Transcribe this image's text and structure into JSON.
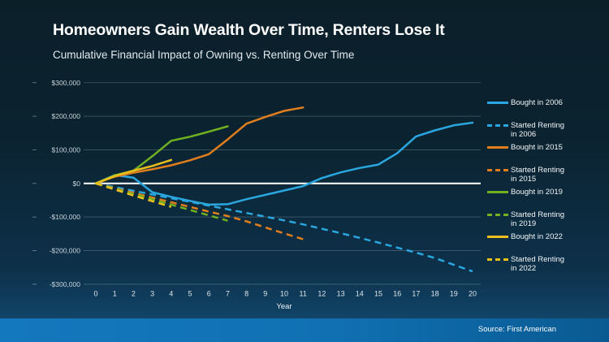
{
  "header": {
    "title": "Homeowners Gain Wealth Over Time, Renters Lose It",
    "subtitle": "Cumulative Financial Impact of Owning vs. Renting Over Time"
  },
  "footer": {
    "source": "Source: First American"
  },
  "colors": {
    "cyan": "#2aa7df",
    "orange": "#e07e1e",
    "green": "#71b121",
    "yellow": "#eac11c",
    "grid": "#ffffff",
    "zero_line": "#ffffff",
    "tick_label": "#c8d3da",
    "x_label": "#dce5ea",
    "ribbon_left": "#1478be",
    "ribbon_right": "#0a5a92",
    "background_top": "#0b1f29",
    "background_bottom": "#135078"
  },
  "chart_data": {
    "type": "line",
    "title": "Homeowners Gain Wealth Over Time, Renters Lose It",
    "subtitle": "Cumulative Financial Impact of Owning vs. Renting Over Time",
    "xlabel": "Year",
    "ylabel": "",
    "xlim": [
      0,
      20
    ],
    "ylim": [
      -300000,
      300000
    ],
    "grid": true,
    "legend_position": "right",
    "x_ticks": [
      0,
      1,
      2,
      3,
      4,
      5,
      6,
      7,
      8,
      9,
      10,
      11,
      12,
      13,
      14,
      15,
      16,
      17,
      18,
      19,
      20
    ],
    "y_ticks": [
      {
        "value": 300000,
        "label": "$300,000"
      },
      {
        "value": 200000,
        "label": "$200,000"
      },
      {
        "value": 100000,
        "label": "$100,000"
      },
      {
        "value": 0,
        "label": "$0"
      },
      {
        "value": -100000,
        "label": "-$100,000"
      },
      {
        "value": -200000,
        "label": "-$200,000"
      },
      {
        "value": -300000,
        "label": "-$300,000"
      }
    ],
    "series": [
      {
        "name": "Bought in 2006",
        "color_key": "cyan",
        "dash": false,
        "values": [
          0,
          25000,
          17000,
          -26000,
          -40000,
          -52000,
          -63000,
          -62000,
          -47000,
          -34000,
          -21000,
          -8000,
          16000,
          33000,
          46000,
          56000,
          90000,
          140000,
          158000,
          173000,
          181000
        ]
      },
      {
        "name": "Started Renting in 2006",
        "color_key": "cyan",
        "dash": true,
        "values": [
          0,
          -11000,
          -22000,
          -33000,
          -44000,
          -55000,
          -66000,
          -77000,
          -88000,
          -99000,
          -110000,
          -122000,
          -135000,
          -148000,
          -162000,
          -176000,
          -191000,
          -206000,
          -222000,
          -242000,
          -262000
        ]
      },
      {
        "name": "Bought in 2015",
        "color_key": "orange",
        "dash": false,
        "values": [
          0,
          20000,
          32000,
          42000,
          54000,
          69000,
          87000,
          131000,
          178000,
          198000,
          216000,
          226000
        ]
      },
      {
        "name": "Started Renting in 2015",
        "color_key": "orange",
        "dash": true,
        "values": [
          0,
          -14000,
          -28000,
          -42000,
          -56000,
          -70000,
          -84000,
          -97000,
          -113000,
          -131000,
          -149000,
          -166000
        ]
      },
      {
        "name": "Bought in 2019",
        "color_key": "green",
        "dash": false,
        "values": [
          0,
          24000,
          38000,
          81000,
          127000,
          139000,
          154000,
          170000
        ]
      },
      {
        "name": "Started Renting in 2019",
        "color_key": "green",
        "dash": true,
        "values": [
          0,
          -16000,
          -32000,
          -47000,
          -63000,
          -79000,
          -95000,
          -111000
        ]
      },
      {
        "name": "Bought in 2022",
        "color_key": "yellow",
        "dash": false,
        "values": [
          0,
          22000,
          38000,
          52000,
          70000
        ]
      },
      {
        "name": "Started Renting in 2022",
        "color_key": "yellow",
        "dash": true,
        "values": [
          0,
          -18000,
          -36000,
          -53000,
          -70000
        ]
      }
    ]
  }
}
